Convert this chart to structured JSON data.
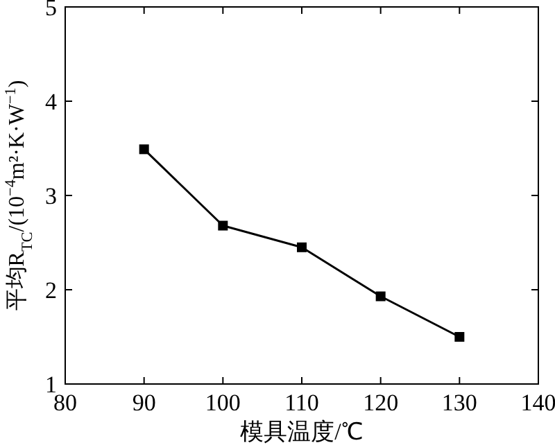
{
  "chart_data": {
    "type": "line",
    "xlabel": "模具温度/℃",
    "ylabel": "平均R$_{TC}$/(10$^{−4}$m²·K·W$^{−1}$)",
    "x": [
      90,
      100,
      110,
      120,
      130
    ],
    "series": [
      {
        "color": "#000000",
        "values": [
          3.49,
          2.68,
          2.45,
          1.93,
          1.5
        ]
      }
    ],
    "xlim": [
      80,
      140
    ],
    "xticks": [
      80,
      90,
      100,
      110,
      120,
      130,
      140
    ],
    "ylim": [
      1,
      5
    ],
    "yticks": [
      1,
      2,
      3,
      4,
      5
    ],
    "marker": "square",
    "line_style": "solid"
  }
}
